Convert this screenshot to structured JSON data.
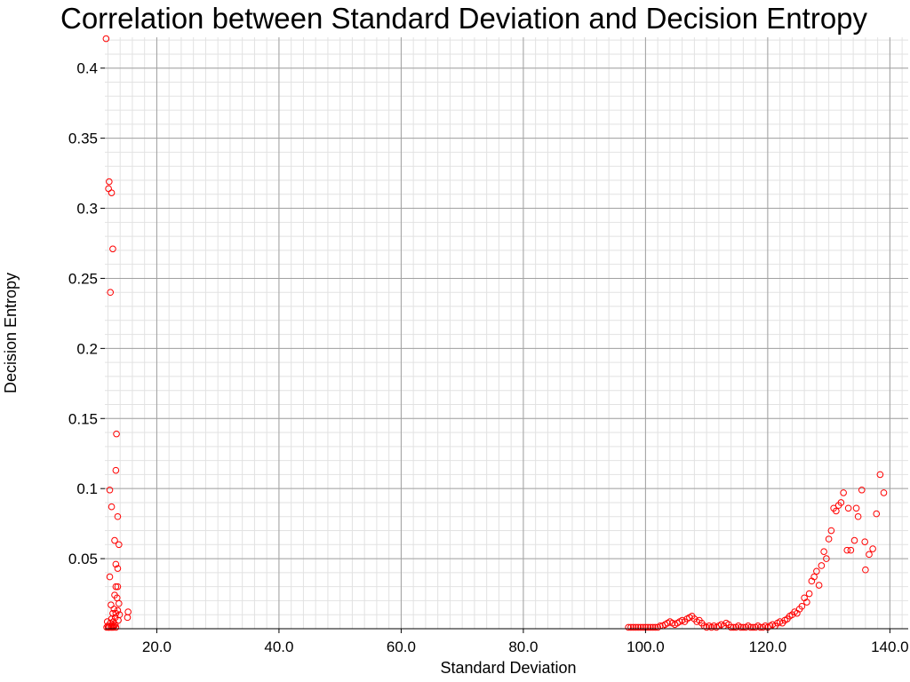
{
  "chart_data": {
    "type": "scatter",
    "title": "Correlation between Standard Deviation and Decision Entropy",
    "xlabel": "Standard Deviation",
    "ylabel": "Decision Entropy",
    "xlim": [
      11.5,
      143
    ],
    "ylim": [
      0,
      0.422
    ],
    "x_ticks": [
      "20.0",
      "40.0",
      "60.0",
      "80.0",
      "100.0",
      "120.0",
      "140.0"
    ],
    "x_tick_values": [
      20,
      40,
      60,
      80,
      100,
      120,
      140
    ],
    "y_ticks": [
      "0.05",
      "0.1",
      "0.15",
      "0.2",
      "0.25",
      "0.3",
      "0.35",
      "0.4"
    ],
    "y_tick_values": [
      0.05,
      0.1,
      0.15,
      0.2,
      0.25,
      0.3,
      0.35,
      0.4
    ],
    "grid": true,
    "marker_color": "#ff0000",
    "points": [
      [
        11.7,
        0.421
      ],
      [
        11.9,
        0.005
      ],
      [
        11.8,
        0.001
      ],
      [
        12.0,
        0.002
      ],
      [
        12.1,
        0.001
      ],
      [
        12.2,
        0.319
      ],
      [
        12.1,
        0.314
      ],
      [
        12.6,
        0.311
      ],
      [
        12.8,
        0.271
      ],
      [
        12.4,
        0.24
      ],
      [
        13.4,
        0.139
      ],
      [
        13.3,
        0.113
      ],
      [
        12.3,
        0.099
      ],
      [
        12.6,
        0.087
      ],
      [
        13.6,
        0.08
      ],
      [
        13.1,
        0.063
      ],
      [
        13.8,
        0.06
      ],
      [
        13.3,
        0.046
      ],
      [
        13.6,
        0.043
      ],
      [
        12.3,
        0.037
      ],
      [
        13.3,
        0.03
      ],
      [
        13.6,
        0.03
      ],
      [
        13.1,
        0.024
      ],
      [
        13.5,
        0.022
      ],
      [
        13.8,
        0.018
      ],
      [
        12.5,
        0.017
      ],
      [
        13.0,
        0.014
      ],
      [
        13.6,
        0.013
      ],
      [
        13.3,
        0.011
      ],
      [
        12.8,
        0.011
      ],
      [
        13.9,
        0.01
      ],
      [
        13.2,
        0.008
      ],
      [
        12.6,
        0.007
      ],
      [
        13.7,
        0.006
      ],
      [
        12.9,
        0.005
      ],
      [
        12.4,
        0.004
      ],
      [
        13.2,
        0.003
      ],
      [
        12.7,
        0.002
      ],
      [
        13.0,
        0.002
      ],
      [
        12.5,
        0.001
      ],
      [
        12.9,
        0.001
      ],
      [
        13.3,
        0.001
      ],
      [
        12.2,
        0.001
      ],
      [
        12.7,
        0.001
      ],
      [
        15.3,
        0.012
      ],
      [
        15.2,
        0.008
      ],
      [
        97.2,
        0.001
      ],
      [
        97.6,
        0.001
      ],
      [
        98.0,
        0.001
      ],
      [
        98.4,
        0.001
      ],
      [
        98.8,
        0.001
      ],
      [
        99.2,
        0.001
      ],
      [
        99.6,
        0.001
      ],
      [
        100.0,
        0.001
      ],
      [
        100.4,
        0.001
      ],
      [
        100.8,
        0.001
      ],
      [
        101.2,
        0.001
      ],
      [
        101.6,
        0.001
      ],
      [
        102.0,
        0.001
      ],
      [
        102.4,
        0.002
      ],
      [
        102.8,
        0.002
      ],
      [
        103.2,
        0.003
      ],
      [
        103.6,
        0.004
      ],
      [
        104.0,
        0.005
      ],
      [
        104.4,
        0.004
      ],
      [
        104.8,
        0.003
      ],
      [
        105.2,
        0.004
      ],
      [
        105.6,
        0.005
      ],
      [
        106.0,
        0.006
      ],
      [
        106.4,
        0.005
      ],
      [
        106.8,
        0.007
      ],
      [
        107.2,
        0.008
      ],
      [
        107.6,
        0.009
      ],
      [
        108.0,
        0.007
      ],
      [
        108.4,
        0.005
      ],
      [
        108.8,
        0.006
      ],
      [
        109.2,
        0.004
      ],
      [
        109.6,
        0.002
      ],
      [
        110.0,
        0.001
      ],
      [
        110.4,
        0.002
      ],
      [
        110.8,
        0.001
      ],
      [
        111.2,
        0.002
      ],
      [
        111.6,
        0.001
      ],
      [
        112.0,
        0.002
      ],
      [
        112.4,
        0.003
      ],
      [
        112.8,
        0.002
      ],
      [
        113.2,
        0.004
      ],
      [
        113.6,
        0.003
      ],
      [
        114.0,
        0.001
      ],
      [
        114.4,
        0.001
      ],
      [
        114.8,
        0.001
      ],
      [
        115.2,
        0.002
      ],
      [
        115.6,
        0.001
      ],
      [
        116.0,
        0.001
      ],
      [
        116.4,
        0.001
      ],
      [
        116.8,
        0.002
      ],
      [
        117.2,
        0.001
      ],
      [
        117.6,
        0.001
      ],
      [
        118.0,
        0.001
      ],
      [
        118.4,
        0.002
      ],
      [
        118.8,
        0.001
      ],
      [
        119.2,
        0.001
      ],
      [
        119.6,
        0.002
      ],
      [
        120.0,
        0.001
      ],
      [
        120.4,
        0.002
      ],
      [
        120.8,
        0.003
      ],
      [
        121.2,
        0.002
      ],
      [
        121.6,
        0.004
      ],
      [
        122.0,
        0.005
      ],
      [
        122.4,
        0.004
      ],
      [
        122.8,
        0.006
      ],
      [
        123.2,
        0.007
      ],
      [
        123.6,
        0.009
      ],
      [
        124.0,
        0.01
      ],
      [
        124.4,
        0.012
      ],
      [
        124.8,
        0.011
      ],
      [
        125.2,
        0.014
      ],
      [
        125.6,
        0.016
      ],
      [
        126.0,
        0.022
      ],
      [
        126.4,
        0.019
      ],
      [
        126.8,
        0.025
      ],
      [
        127.2,
        0.034
      ],
      [
        127.6,
        0.037
      ],
      [
        128.0,
        0.041
      ],
      [
        128.4,
        0.031
      ],
      [
        128.8,
        0.045
      ],
      [
        129.2,
        0.055
      ],
      [
        129.6,
        0.05
      ],
      [
        130.0,
        0.064
      ],
      [
        130.4,
        0.07
      ],
      [
        130.8,
        0.086
      ],
      [
        131.2,
        0.084
      ],
      [
        131.6,
        0.088
      ],
      [
        132.0,
        0.09
      ],
      [
        132.4,
        0.097
      ],
      [
        133.0,
        0.056
      ],
      [
        133.6,
        0.056
      ],
      [
        134.2,
        0.063
      ],
      [
        134.8,
        0.08
      ],
      [
        135.4,
        0.099
      ],
      [
        136.0,
        0.042
      ],
      [
        136.6,
        0.053
      ],
      [
        137.2,
        0.057
      ],
      [
        137.8,
        0.082
      ],
      [
        138.4,
        0.11
      ],
      [
        139.0,
        0.097
      ],
      [
        133.2,
        0.086
      ],
      [
        134.5,
        0.086
      ],
      [
        135.9,
        0.062
      ]
    ]
  }
}
